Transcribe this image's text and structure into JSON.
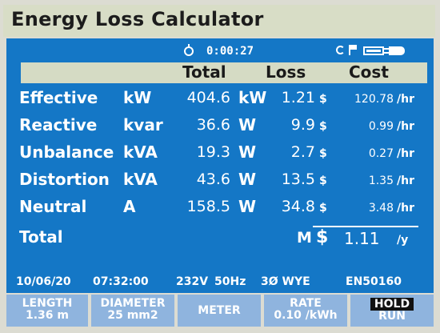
{
  "title": "Energy Loss Calculator",
  "status": {
    "timer": "0:00:27",
    "icons": [
      "clock-icon",
      "rotate-icon",
      "flag-icon",
      "battery-icon",
      "plug-icon"
    ]
  },
  "headers": {
    "total": "Total",
    "loss": "Loss",
    "cost": "Cost"
  },
  "rows": [
    {
      "name": "Effective",
      "unit": "kW",
      "total": "404.6",
      "loss_unit": "kW",
      "loss": "1.21",
      "currency": "$",
      "cost": "120.78",
      "per": "/hr"
    },
    {
      "name": "Reactive",
      "unit": "kvar",
      "total": "36.6",
      "loss_unit": "W",
      "loss": "9.9",
      "currency": "$",
      "cost": "0.99",
      "per": "/hr"
    },
    {
      "name": "Unbalance",
      "unit": "kVA",
      "total": "19.3",
      "loss_unit": "W",
      "loss": "2.7",
      "currency": "$",
      "cost": "0.27",
      "per": "/hr"
    },
    {
      "name": "Distortion",
      "unit": "kVA",
      "total": "43.6",
      "loss_unit": "W",
      "loss": "13.5",
      "currency": "$",
      "cost": "1.35",
      "per": "/hr"
    },
    {
      "name": "Neutral",
      "unit": "A",
      "total": "158.5",
      "loss_unit": "W",
      "loss": "34.8",
      "currency": "$",
      "cost": "3.48",
      "per": "/hr"
    }
  ],
  "total": {
    "label": "Total",
    "prefix": "M",
    "currency": "$",
    "value": "1.11",
    "per": "/y"
  },
  "info": {
    "date": "10/06/20",
    "time": "07:32:00",
    "voltage": "232V",
    "frequency": "50Hz",
    "config": "3Ø WYE",
    "standard": "EN50160"
  },
  "softkeys": {
    "length": {
      "label": "LENGTH",
      "value": "1.36 m"
    },
    "diameter": {
      "label": "DIAMETER",
      "value": "25 mm2"
    },
    "meter": {
      "label": "METER"
    },
    "rate": {
      "label": "RATE",
      "value": "0.10 /kWh"
    },
    "hold_run": {
      "hold": "HOLD",
      "run": "RUN"
    }
  },
  "colors": {
    "screen": "#1477c6",
    "header": "#d5dbc4",
    "softkey": "#8fb4de"
  }
}
